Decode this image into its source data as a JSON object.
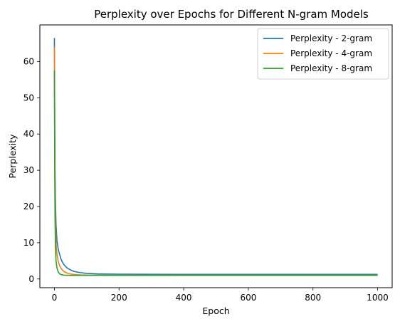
{
  "chart_data": {
    "type": "line",
    "title": "Perplexity over Epochs for Different N-gram Models",
    "xlabel": "Epoch",
    "ylabel": "Perplexity",
    "xlim": [
      -45,
      1045
    ],
    "ylim": [
      -2.4,
      70.1
    ],
    "xticks": [
      0,
      200,
      400,
      600,
      800,
      1000
    ],
    "yticks": [
      0,
      10,
      20,
      30,
      40,
      50,
      60
    ],
    "grid": false,
    "legend_position": "top-right",
    "series": [
      {
        "name": "Perplexity - 2-gram",
        "color": "#1f77b4",
        "x": [
          0,
          1,
          2,
          3,
          5,
          8,
          12,
          16,
          20,
          25,
          30,
          40,
          50,
          60,
          80,
          100,
          130,
          160,
          200,
          300,
          400,
          600,
          800,
          1000
        ],
        "y": [
          66.5,
          43.0,
          30.0,
          22.5,
          15.0,
          10.5,
          8.2,
          6.8,
          5.6,
          4.6,
          3.9,
          3.0,
          2.5,
          2.1,
          1.75,
          1.55,
          1.42,
          1.36,
          1.32,
          1.29,
          1.28,
          1.27,
          1.27,
          1.27
        ]
      },
      {
        "name": "Perplexity - 4-gram",
        "color": "#ff7f0e",
        "x": [
          0,
          1,
          2,
          3,
          5,
          8,
          12,
          16,
          20,
          25,
          30,
          40,
          50,
          60,
          80,
          100,
          130,
          160,
          200,
          300,
          400,
          600,
          800,
          1000
        ],
        "y": [
          64.0,
          38.0,
          24.0,
          16.5,
          10.0,
          6.8,
          4.8,
          3.7,
          3.0,
          2.45,
          2.05,
          1.6,
          1.38,
          1.25,
          1.13,
          1.08,
          1.05,
          1.04,
          1.03,
          1.03,
          1.03,
          1.03,
          1.03,
          1.03
        ]
      },
      {
        "name": "Perplexity - 8-gram",
        "color": "#2ca02c",
        "x": [
          0,
          1,
          2,
          3,
          5,
          8,
          12,
          16,
          20,
          25,
          30,
          40,
          50,
          60,
          80,
          100,
          130,
          160,
          200,
          300,
          400,
          600,
          800,
          1000
        ],
        "y": [
          57.5,
          30.0,
          16.5,
          9.5,
          5.0,
          3.0,
          1.9,
          1.45,
          1.25,
          1.12,
          1.06,
          1.02,
          1.0,
          1.0,
          1.0,
          1.0,
          1.0,
          1.0,
          1.0,
          1.0,
          1.0,
          1.0,
          1.0,
          1.0
        ]
      }
    ]
  }
}
